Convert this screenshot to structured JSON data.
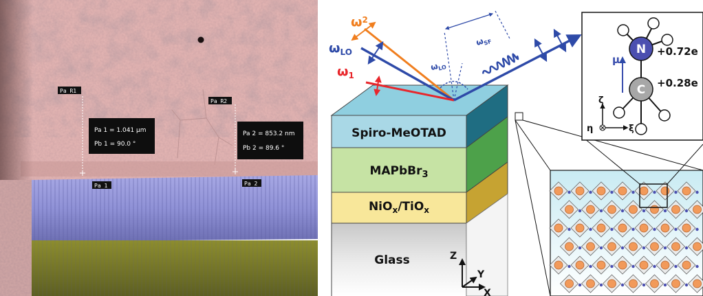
{
  "sem": {
    "markers": [
      {
        "label": "Pa R1"
      },
      {
        "label": "Pa R2"
      },
      {
        "label": "Pa 1"
      },
      {
        "label": "Pa 2"
      }
    ],
    "measurements": [
      {
        "line1": "Pa 1 = 1.041 µm",
        "line2": "Pb 1 = 90.0 °"
      },
      {
        "line1": "Pa 2 = 853.2 nm",
        "line2": "Pb 2 = 89.6 °"
      }
    ]
  },
  "schematic": {
    "beams": {
      "omega2": "ω",
      "omega2_sub": "2",
      "omegaLO": "ω",
      "omegaLO_sub": "LO",
      "omega1": "ω",
      "omega1_sub": "1",
      "omegaLO_angle": "ω",
      "omegaLO_angle_sub": "LO",
      "omegaSF": "ω",
      "omegaSF_sub": "SF"
    },
    "layers": [
      {
        "label": "Spiro-MeOTAD",
        "color": "#a9d8e6"
      },
      {
        "label_main": "MAPbBr",
        "label_sub": "3",
        "color": "#c6e3a4"
      },
      {
        "label_a": "NiO",
        "label_a_sub": "x",
        "label_b": "/TiO",
        "label_b_sub": "x",
        "color": "#f8e79a"
      },
      {
        "label": "Glass"
      }
    ],
    "axes": {
      "z": "Z",
      "y": "Y",
      "x": "X"
    },
    "molecule": {
      "n_atom": "N",
      "c_atom": "C",
      "n_charge": "+0.72e",
      "c_charge": "+0.28e",
      "dipole": "μ",
      "zeta": "ζ",
      "eta": "η",
      "xi": "ξ"
    },
    "colors": {
      "red_beam": "#e8262b",
      "orange_beam": "#f07e1e",
      "blue_beam": "#2e4aa8",
      "nitrogen": "#4b4fb0",
      "carbon": "#a7a7a7",
      "lead": "#f29a5a"
    }
  }
}
